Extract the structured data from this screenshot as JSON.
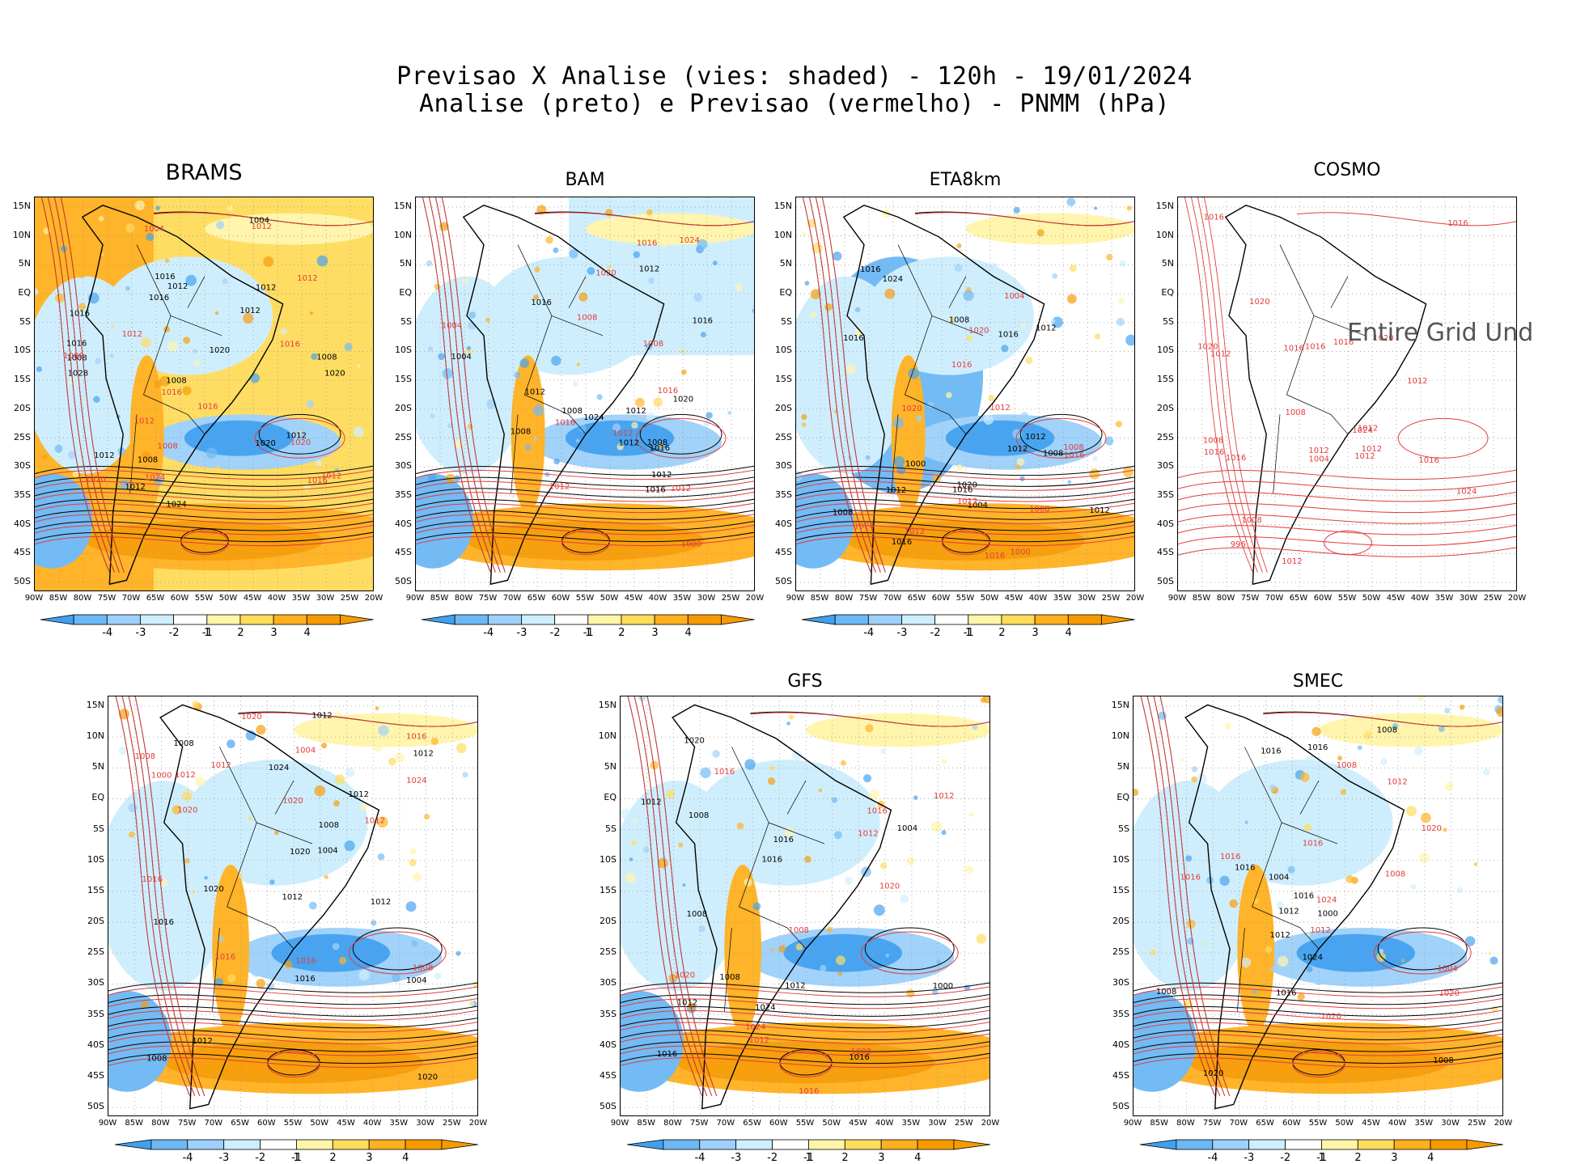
{
  "header": {
    "line1": "Previsao X Analise (vies: shaded) - 120h - 19/01/2024",
    "line2": "Analise (preto) e Previsao (vermelho) - PNMM (hPa)"
  },
  "axes": {
    "lat_labels": [
      "15N",
      "10N",
      "5N",
      "EQ",
      "5S",
      "10S",
      "15S",
      "20S",
      "25S",
      "30S",
      "35S",
      "40S",
      "45S",
      "50S"
    ],
    "lon_labels": [
      "90W",
      "85W",
      "80W",
      "75W",
      "70W",
      "65W",
      "60W",
      "55W",
      "50W",
      "45W",
      "40W",
      "35W",
      "30W",
      "25W",
      "20W"
    ]
  },
  "colorbar": {
    "labels": [
      "-4",
      "-3",
      "-2",
      "-1",
      "1",
      "2",
      "3",
      "4"
    ],
    "colors": [
      "#3fa0f0",
      "#6cb8f5",
      "#9dd0fa",
      "#cdeefd",
      "#ffffff",
      "#fff5a8",
      "#ffdc5a",
      "#ffb01e",
      "#f79a00"
    ]
  },
  "contour_colors": {
    "analysis": "#000000",
    "forecast": "#e23c3c"
  },
  "panels": [
    {
      "name": "BRAMS",
      "bias_shading": true,
      "labels_black": [
        "1016",
        "1016",
        "1012",
        "1008",
        "1012",
        "1008",
        "1012",
        "1012",
        "1020",
        "1024",
        "1028",
        "1016",
        "1020",
        "1012",
        "1008",
        "1004",
        "1016",
        "1008",
        "1012",
        "1020"
      ],
      "labels_red": [
        "1016",
        "1012",
        "1008",
        "1012",
        "1016",
        "1012",
        "1012",
        "1020",
        "1016",
        "1024",
        "1020",
        "1016",
        "1012",
        "1008",
        "1004"
      ],
      "message": ""
    },
    {
      "name": "BAM",
      "bias_shading": true,
      "labels_black": [
        "1016",
        "1012",
        "1008",
        "1012",
        "1008",
        "1012",
        "1016",
        "1020",
        "1024",
        "1012",
        "1008",
        "1004",
        "1016",
        "1016",
        "1012"
      ],
      "labels_red": [
        "1016",
        "1012",
        "1008",
        "1012",
        "1016",
        "1020",
        "1016",
        "1012",
        "1008",
        "1004",
        "1000",
        "1024"
      ],
      "message": ""
    },
    {
      "name": "ETA8km",
      "bias_shading": true,
      "labels_black": [
        "1012",
        "1016",
        "1016",
        "1008",
        "1012",
        "1012",
        "1016",
        "1012",
        "1020",
        "1024",
        "1016",
        "1012",
        "1008",
        "1004",
        "1000",
        "1016",
        "1008"
      ],
      "labels_red": [
        "1020",
        "1016",
        "1012",
        "1008",
        "1016",
        "1012",
        "1020",
        "1024",
        "1016",
        "1012",
        "1008",
        "1004",
        "1000"
      ],
      "message": ""
    },
    {
      "name": "COSMO",
      "bias_shading": false,
      "labels_black": [],
      "labels_red": [
        "1012",
        "1012",
        "1016",
        "1012",
        "1008",
        "1016",
        "1012",
        "1012",
        "1016",
        "1016",
        "1008",
        "1020",
        "1016",
        "1012",
        "1016",
        "1024",
        "1020",
        "1016",
        "1012",
        "1020",
        "1008",
        "1024",
        "1004",
        "996",
        "1016"
      ],
      "message": "Entire Grid Und"
    },
    {
      "name": "",
      "bias_shading": true,
      "labels_black": [
        "1020",
        "1012",
        "1008",
        "1012",
        "1016",
        "1012",
        "1012",
        "1020",
        "1024",
        "1016",
        "1012",
        "1008",
        "1004",
        "1020",
        "1012",
        "1008",
        "1004"
      ],
      "labels_red": [
        "1020",
        "1016",
        "1016",
        "1012",
        "1008",
        "1012",
        "1016",
        "1020",
        "1024",
        "1012",
        "1008",
        "1004",
        "1000",
        "1016",
        "1020"
      ],
      "message": ""
    },
    {
      "name": "GFS",
      "bias_shading": true,
      "labels_black": [
        "1016",
        "1012",
        "1008",
        "1016",
        "1012",
        "1016",
        "1020",
        "1024",
        "1016",
        "1012",
        "1008",
        "1004",
        "1000",
        "1008"
      ],
      "labels_red": [
        "1016",
        "1012",
        "1008",
        "1012",
        "1016",
        "1020",
        "1024",
        "1020",
        "1016",
        "1012",
        "1008"
      ],
      "message": ""
    },
    {
      "name": "SMEC",
      "bias_shading": true,
      "labels_black": [
        "1016",
        "1008",
        "1016",
        "1012",
        "1016",
        "1020",
        "1024",
        "1016",
        "1012",
        "1008",
        "1004",
        "1000",
        "1008",
        "1016"
      ],
      "labels_red": [
        "1020",
        "1016",
        "1008",
        "1012",
        "1016",
        "1020",
        "1024",
        "1020",
        "1016",
        "1012",
        "1008",
        "1004"
      ],
      "message": ""
    }
  ]
}
